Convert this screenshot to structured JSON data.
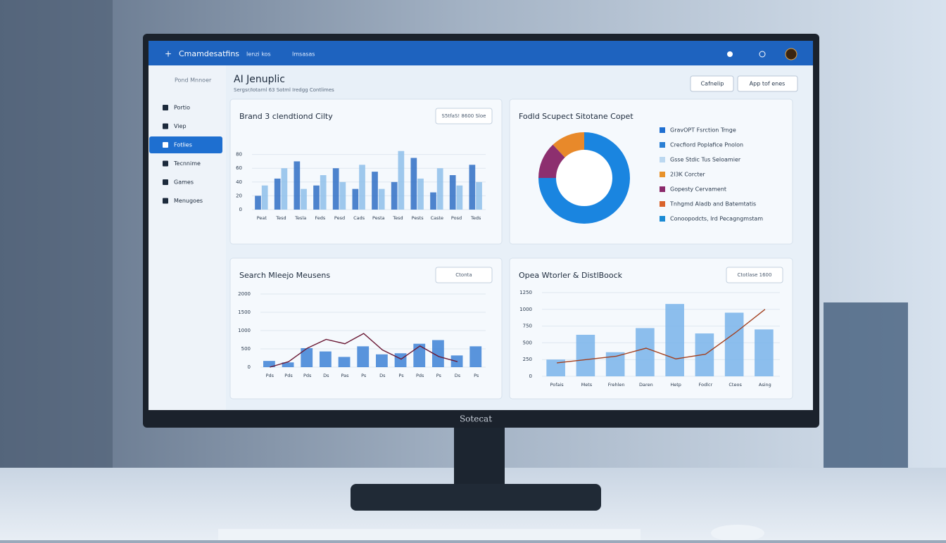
{
  "header": {
    "app_name": "Cmamdesatfins",
    "links": [
      "Ienzi kos",
      "Imsasas"
    ]
  },
  "sidebar": {
    "title": "Pond Mnnoer",
    "items": [
      "Portio",
      "Viep",
      "Fotlies",
      "Tecnnime",
      "Games",
      "Menugoes"
    ],
    "active": 2
  },
  "page": {
    "title": "AI Jenuplic",
    "subtitle": "Sergsr/Iotarnl 63 Sotml Iredgg Contlimes",
    "buttons": [
      "Cafnelip",
      "App tof enes"
    ]
  },
  "panels": [
    {
      "title": "Brand 3 clendtiond Cilty",
      "button": "S5tfaS! 8600 Sloe",
      "chart": {
        "type": "bar",
        "categories": [
          "Peat",
          "Tesd",
          "Tesla",
          "Feds",
          "Pesd",
          "Cads",
          "Pesta",
          "Tesd",
          "Pests",
          "Caste",
          "Posd",
          "Teds"
        ],
        "series": [
          {
            "color": "#2f6fc4",
            "values": [
              20,
              45,
              70,
              35,
              60,
              30,
              55,
              40,
              75,
              25,
              50,
              65
            ]
          },
          {
            "color": "#8ec0ea",
            "values": [
              35,
              60,
              30,
              50,
              40,
              65,
              30,
              85,
              45,
              60,
              35,
              40
            ]
          }
        ],
        "ylim": [
          0,
          100
        ],
        "yticks": [
          0,
          20,
          40,
          60,
          80
        ],
        "grid": true
      }
    },
    {
      "title": "Fodld Scupect Sitotane Copet",
      "button": null,
      "chart": {
        "type": "donut",
        "values": [
          75,
          13,
          12
        ],
        "colors": [
          "#1a85e0",
          "#8d2f6f",
          "#e8892a"
        ]
      },
      "legend": [
        {
          "label": "GravOPT Fsrction Trnge",
          "color": "#1f6fd1"
        },
        {
          "label": "Crecfiord Poplafice Pnolon",
          "color": "#2a7fd4"
        },
        {
          "label": "Gsse Stdic Tus Seloamier",
          "color": "#bcd8f0"
        },
        {
          "label": "2I3K Corcter",
          "color": "#e8922a"
        },
        {
          "label": "Gopesty Cervament",
          "color": "#8b2a6b"
        },
        {
          "label": "Tnhgmd Aladb and Batemtatis",
          "color": "#d9632b"
        },
        {
          "label": "Conoopodcts, Ird Pecagngmstam",
          "color": "#1a8ad4"
        }
      ]
    },
    {
      "title": "Search Mleejo Meusens",
      "button": "Ctonta",
      "chart": {
        "type": "bar",
        "categories": [
          "Pds",
          "Pds",
          "Pds",
          "Ds",
          "Pas",
          "Ps",
          "Ds",
          "Ps",
          "Pds",
          "Ps",
          "Ds",
          "Ps"
        ],
        "series": [
          {
            "color": "#3d82d6",
            "values": [
              170,
              130,
              520,
              430,
              280,
              570,
              350,
              380,
              640,
              740,
              320,
              570
            ]
          },
          {
            "color": "#6b1a35",
            "style": "line",
            "values": [
              0,
              150,
              520,
              760,
              640,
              920,
              470,
              220,
              580,
              290,
              150,
              null
            ]
          }
        ],
        "ylim": [
          0,
          2000
        ],
        "yticks": [
          0,
          500,
          1000,
          1500,
          2000
        ],
        "grid": true
      }
    },
    {
      "title": "Opea Wtorler & DistlBoock",
      "button": "Ctotlase 1600",
      "chart": {
        "type": "bar",
        "categories": [
          "Pofais",
          "Mets",
          "Frehlen",
          "Daren",
          "Hetp",
          "Fodlcr",
          "Cteos",
          "Asing"
        ],
        "series": [
          {
            "color": "#79b4ea",
            "values": [
              250,
              620,
              360,
              720,
              1080,
              640,
              950,
              700
            ]
          },
          {
            "color": "#a3401f",
            "style": "line",
            "values": [
              200,
              250,
              300,
              420,
              260,
              330,
              650,
              1000
            ]
          }
        ],
        "ylim": [
          0,
          1250
        ],
        "yticks": [
          0,
          250,
          500,
          750,
          1000,
          1250
        ],
        "grid": true
      }
    }
  ],
  "monitor": {
    "brand": "Sotecat"
  }
}
